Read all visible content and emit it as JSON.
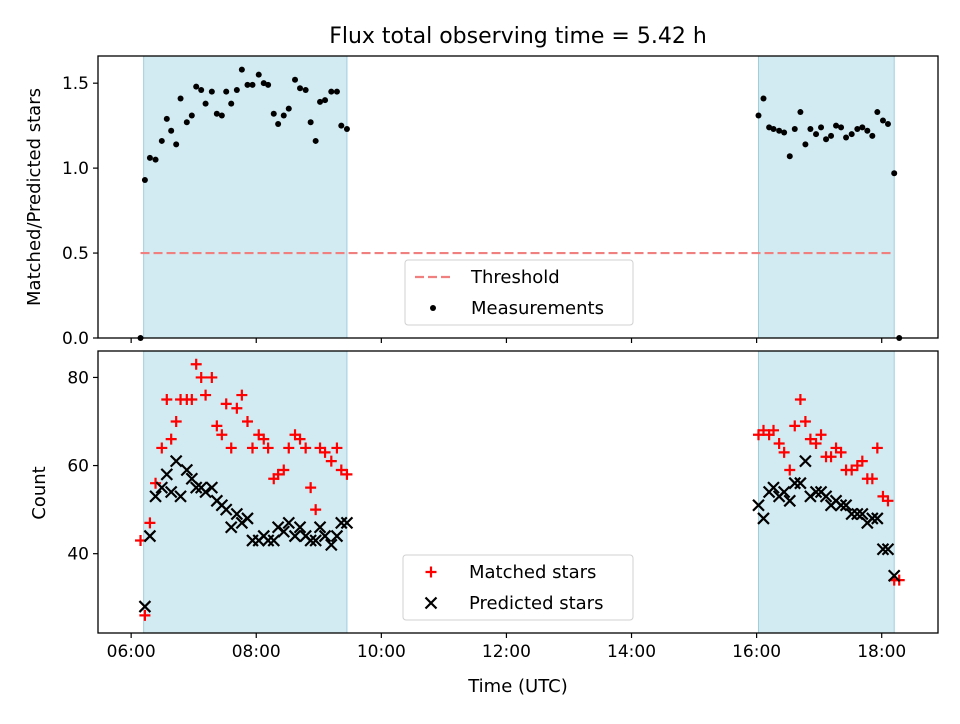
{
  "figure": {
    "title": "Flux total observing time = 5.42 h"
  },
  "chart_data": [
    {
      "type": "scatter",
      "title": "Flux total observing time = 5.42 h",
      "xlabel": "",
      "ylabel": "Matched/Predicted stars",
      "x_unit": "hours UTC",
      "xlim": [
        5.47,
        18.9
      ],
      "ylim": [
        0.0,
        1.66
      ],
      "yticks": [
        0.0,
        0.5,
        1.0,
        1.5
      ],
      "ytick_labels": [
        "0.0",
        "0.5",
        "1.0",
        "1.5"
      ],
      "shaded_intervals": [
        [
          6.2,
          9.45
        ],
        [
          16.03,
          18.2
        ]
      ],
      "shade_color": "#add8e6",
      "threshold": {
        "name": "Threshold",
        "value": 0.5,
        "x_range": [
          6.15,
          18.2
        ],
        "color": "#f08080",
        "style": "dashed"
      },
      "legend": {
        "placement": "lower-center",
        "entries": [
          "Threshold",
          "Measurements"
        ]
      },
      "series": [
        {
          "name": "Measurements",
          "marker": "dot",
          "color": "#000000",
          "points": [
            [
              6.15,
              0.0
            ],
            [
              6.22,
              0.93
            ],
            [
              6.3,
              1.06
            ],
            [
              6.39,
              1.05
            ],
            [
              6.49,
              1.16
            ],
            [
              6.57,
              1.29
            ],
            [
              6.64,
              1.22
            ],
            [
              6.72,
              1.14
            ],
            [
              6.79,
              1.41
            ],
            [
              6.89,
              1.27
            ],
            [
              6.97,
              1.31
            ],
            [
              7.04,
              1.48
            ],
            [
              7.12,
              1.46
            ],
            [
              7.19,
              1.38
            ],
            [
              7.29,
              1.45
            ],
            [
              7.37,
              1.32
            ],
            [
              7.45,
              1.31
            ],
            [
              7.52,
              1.45
            ],
            [
              7.6,
              1.38
            ],
            [
              7.69,
              1.46
            ],
            [
              7.77,
              1.58
            ],
            [
              7.86,
              1.49
            ],
            [
              7.94,
              1.49
            ],
            [
              8.04,
              1.55
            ],
            [
              8.12,
              1.5
            ],
            [
              8.19,
              1.49
            ],
            [
              8.28,
              1.32
            ],
            [
              8.35,
              1.26
            ],
            [
              8.44,
              1.31
            ],
            [
              8.52,
              1.35
            ],
            [
              8.62,
              1.52
            ],
            [
              8.7,
              1.47
            ],
            [
              8.79,
              1.46
            ],
            [
              8.87,
              1.27
            ],
            [
              8.95,
              1.16
            ],
            [
              9.02,
              1.39
            ],
            [
              9.1,
              1.4
            ],
            [
              9.2,
              1.45
            ],
            [
              9.29,
              1.45
            ],
            [
              9.36,
              1.25
            ],
            [
              9.45,
              1.23
            ],
            [
              16.03,
              1.31
            ],
            [
              16.11,
              1.41
            ],
            [
              16.2,
              1.24
            ],
            [
              16.27,
              1.23
            ],
            [
              16.36,
              1.22
            ],
            [
              16.44,
              1.21
            ],
            [
              16.53,
              1.07
            ],
            [
              16.61,
              1.23
            ],
            [
              16.7,
              1.33
            ],
            [
              16.78,
              1.14
            ],
            [
              16.86,
              1.23
            ],
            [
              16.95,
              1.2
            ],
            [
              17.03,
              1.24
            ],
            [
              17.11,
              1.17
            ],
            [
              17.19,
              1.19
            ],
            [
              17.27,
              1.25
            ],
            [
              17.35,
              1.24
            ],
            [
              17.43,
              1.18
            ],
            [
              17.52,
              1.2
            ],
            [
              17.61,
              1.23
            ],
            [
              17.69,
              1.24
            ],
            [
              17.77,
              1.22
            ],
            [
              17.85,
              1.19
            ],
            [
              17.93,
              1.33
            ],
            [
              18.02,
              1.28
            ],
            [
              18.1,
              1.26
            ],
            [
              18.2,
              0.97
            ],
            [
              18.28,
              0.0
            ]
          ]
        }
      ]
    },
    {
      "type": "scatter",
      "title": "",
      "xlabel": "Time (UTC)",
      "ylabel": "Count",
      "x_unit": "hours UTC",
      "xlim": [
        5.47,
        18.9
      ],
      "ylim": [
        22,
        86
      ],
      "yticks": [
        40,
        60,
        80
      ],
      "ytick_labels": [
        "40",
        "60",
        "80"
      ],
      "xticks": [
        6,
        8,
        10,
        12,
        14,
        16,
        18
      ],
      "xtick_labels": [
        "06:00",
        "08:00",
        "10:00",
        "12:00",
        "14:00",
        "16:00",
        "18:00"
      ],
      "shaded_intervals": [
        [
          6.2,
          9.45
        ],
        [
          16.03,
          18.2
        ]
      ],
      "shade_color": "#add8e6",
      "legend": {
        "placement": "lower-center",
        "entries": [
          "Matched stars",
          "Predicted stars"
        ]
      },
      "series": [
        {
          "name": "Matched stars",
          "marker": "plus",
          "color": "#ff0000",
          "points": [
            [
              6.15,
              43
            ],
            [
              6.22,
              26
            ],
            [
              6.3,
              47
            ],
            [
              6.39,
              56
            ],
            [
              6.49,
              64
            ],
            [
              6.57,
              75
            ],
            [
              6.64,
              66
            ],
            [
              6.72,
              70
            ],
            [
              6.79,
              75
            ],
            [
              6.89,
              75
            ],
            [
              6.97,
              75
            ],
            [
              7.04,
              83
            ],
            [
              7.12,
              80
            ],
            [
              7.19,
              76
            ],
            [
              7.29,
              80
            ],
            [
              7.37,
              69
            ],
            [
              7.45,
              67
            ],
            [
              7.52,
              74
            ],
            [
              7.6,
              64
            ],
            [
              7.69,
              73
            ],
            [
              7.77,
              76
            ],
            [
              7.86,
              70
            ],
            [
              7.94,
              64
            ],
            [
              8.04,
              67
            ],
            [
              8.12,
              66
            ],
            [
              8.19,
              64
            ],
            [
              8.28,
              57
            ],
            [
              8.35,
              58
            ],
            [
              8.44,
              59
            ],
            [
              8.52,
              64
            ],
            [
              8.62,
              67
            ],
            [
              8.7,
              66
            ],
            [
              8.79,
              64
            ],
            [
              8.87,
              55
            ],
            [
              8.95,
              50
            ],
            [
              9.02,
              64
            ],
            [
              9.1,
              63
            ],
            [
              9.2,
              61
            ],
            [
              9.29,
              64
            ],
            [
              9.36,
              59
            ],
            [
              9.45,
              58
            ],
            [
              16.03,
              67
            ],
            [
              16.11,
              68
            ],
            [
              16.2,
              67
            ],
            [
              16.27,
              68
            ],
            [
              16.36,
              65
            ],
            [
              16.44,
              63
            ],
            [
              16.53,
              59
            ],
            [
              16.61,
              69
            ],
            [
              16.7,
              75
            ],
            [
              16.78,
              70
            ],
            [
              16.86,
              66
            ],
            [
              16.95,
              65
            ],
            [
              17.03,
              67
            ],
            [
              17.11,
              62
            ],
            [
              17.19,
              62
            ],
            [
              17.27,
              64
            ],
            [
              17.35,
              63
            ],
            [
              17.43,
              59
            ],
            [
              17.52,
              59
            ],
            [
              17.61,
              60
            ],
            [
              17.69,
              61
            ],
            [
              17.77,
              57
            ],
            [
              17.85,
              57
            ],
            [
              17.93,
              64
            ],
            [
              18.02,
              53
            ],
            [
              18.1,
              52
            ],
            [
              18.2,
              34
            ],
            [
              18.28,
              34
            ]
          ]
        },
        {
          "name": "Predicted stars",
          "marker": "x",
          "color": "#000000",
          "points": [
            [
              6.22,
              28
            ],
            [
              6.3,
              44
            ],
            [
              6.39,
              53
            ],
            [
              6.49,
              55
            ],
            [
              6.57,
              58
            ],
            [
              6.64,
              54
            ],
            [
              6.72,
              61
            ],
            [
              6.79,
              53
            ],
            [
              6.89,
              59
            ],
            [
              6.97,
              57
            ],
            [
              7.04,
              55
            ],
            [
              7.12,
              55
            ],
            [
              7.19,
              54
            ],
            [
              7.29,
              55
            ],
            [
              7.37,
              52
            ],
            [
              7.45,
              51
            ],
            [
              7.52,
              50
            ],
            [
              7.6,
              46
            ],
            [
              7.69,
              49
            ],
            [
              7.77,
              47
            ],
            [
              7.86,
              48
            ],
            [
              7.94,
              43
            ],
            [
              8.04,
              43
            ],
            [
              8.12,
              44
            ],
            [
              8.19,
              43
            ],
            [
              8.28,
              43
            ],
            [
              8.35,
              46
            ],
            [
              8.44,
              45
            ],
            [
              8.52,
              47
            ],
            [
              8.62,
              44
            ],
            [
              8.7,
              46
            ],
            [
              8.79,
              44
            ],
            [
              8.87,
              43
            ],
            [
              8.95,
              43
            ],
            [
              9.02,
              46
            ],
            [
              9.1,
              44
            ],
            [
              9.2,
              42
            ],
            [
              9.29,
              44
            ],
            [
              9.36,
              47
            ],
            [
              9.45,
              47
            ],
            [
              16.03,
              51
            ],
            [
              16.11,
              48
            ],
            [
              16.2,
              54
            ],
            [
              16.27,
              55
            ],
            [
              16.36,
              53
            ],
            [
              16.44,
              54
            ],
            [
              16.53,
              52
            ],
            [
              16.61,
              56
            ],
            [
              16.7,
              56
            ],
            [
              16.78,
              61
            ],
            [
              16.86,
              53
            ],
            [
              16.95,
              54
            ],
            [
              17.03,
              54
            ],
            [
              17.11,
              53
            ],
            [
              17.19,
              51
            ],
            [
              17.27,
              52
            ],
            [
              17.35,
              51
            ],
            [
              17.43,
              51
            ],
            [
              17.52,
              49
            ],
            [
              17.61,
              49
            ],
            [
              17.69,
              49
            ],
            [
              17.77,
              47
            ],
            [
              17.85,
              48
            ],
            [
              17.93,
              48
            ],
            [
              18.02,
              41
            ],
            [
              18.1,
              41
            ],
            [
              18.2,
              35
            ]
          ]
        }
      ]
    }
  ]
}
